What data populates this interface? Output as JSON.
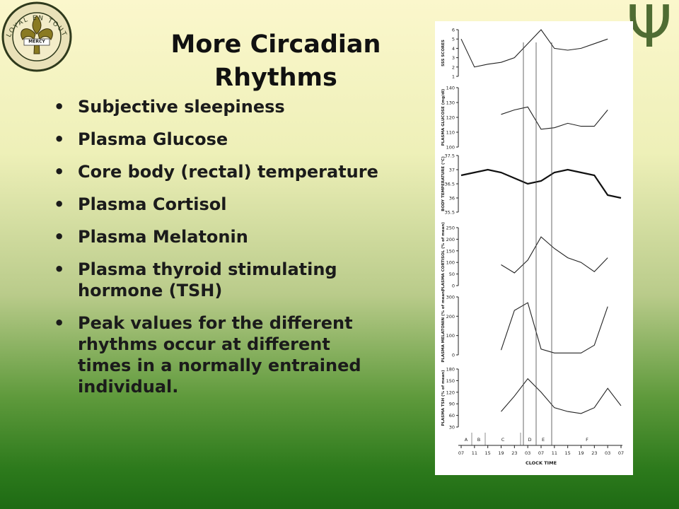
{
  "slide": {
    "title": "More Circadian Rhythms",
    "bullets": [
      "Subjective sleepiness",
      "Plasma Glucose",
      "Core body (rectal) temperature",
      "Plasma Cortisol",
      "Plasma Melatonin",
      "Plasma thyroid stimulating hormone (TSH)",
      "Peak values for the different rhythms occur at different times in a normally entrained individual."
    ],
    "logo_motto": "LOYAL EN TOUT",
    "logo_banner": "MERCY",
    "corner_symbol": "Ψ"
  },
  "chart_data": [
    {
      "type": "line",
      "ylabel": "SSS SCORES",
      "ylim": [
        1,
        6
      ],
      "yticks": [
        1,
        2,
        3,
        4,
        5,
        6
      ],
      "color": "#222222",
      "values": [
        5,
        2,
        2.3,
        2.5,
        3,
        4.5,
        6,
        4,
        3.8,
        4,
        4.5,
        5,
        null
      ]
    },
    {
      "type": "line",
      "ylabel": "PLASMA GLUCOSE (mg/dl)",
      "ylim": [
        100,
        140
      ],
      "yticks": [
        100,
        110,
        120,
        130,
        140
      ],
      "color": "#222222",
      "values": [
        null,
        null,
        null,
        122,
        125,
        127,
        112,
        113,
        116,
        114,
        114,
        125,
        null
      ]
    },
    {
      "type": "line",
      "ylabel": "BODY TEMPERATURE (°C)",
      "ylim": [
        35.5,
        37.5
      ],
      "yticks": [
        35.5,
        36,
        36.5,
        37,
        37.5
      ],
      "color": "#111111",
      "values": [
        36.8,
        36.9,
        37.0,
        36.9,
        36.7,
        36.5,
        36.6,
        36.9,
        37.0,
        36.9,
        36.8,
        36.1,
        36.0
      ]
    },
    {
      "type": "line",
      "ylabel": "PLASMA CORTISOL (% of mean)",
      "ylim": [
        0,
        250
      ],
      "yticks": [
        0,
        50,
        100,
        150,
        200,
        250
      ],
      "color": "#222222",
      "values": [
        null,
        null,
        null,
        90,
        55,
        110,
        210,
        160,
        120,
        100,
        60,
        120,
        null
      ]
    },
    {
      "type": "line",
      "ylabel": "PLASMA MELATONIN (% of mean)",
      "ylim": [
        0,
        300
      ],
      "yticks": [
        0,
        100,
        200,
        300
      ],
      "color": "#222222",
      "values": [
        null,
        null,
        null,
        25,
        230,
        270,
        30,
        10,
        10,
        10,
        50,
        250,
        null
      ]
    },
    {
      "type": "line",
      "ylabel": "PLASMA TSH (% of mean)",
      "ylim": [
        30,
        180
      ],
      "yticks": [
        30,
        60,
        90,
        120,
        150,
        180
      ],
      "color": "#222222",
      "values": [
        null,
        null,
        null,
        70,
        110,
        155,
        120,
        80,
        70,
        65,
        80,
        130,
        85
      ],
      "categories": [
        "07",
        "11",
        "15",
        "19",
        "23",
        "03",
        "07",
        "11",
        "15",
        "19",
        "23",
        "03",
        "07"
      ],
      "x_label": "CLOCK TIME",
      "periods": [
        "A",
        "B",
        "C",
        "D",
        "E",
        "F"
      ]
    }
  ]
}
